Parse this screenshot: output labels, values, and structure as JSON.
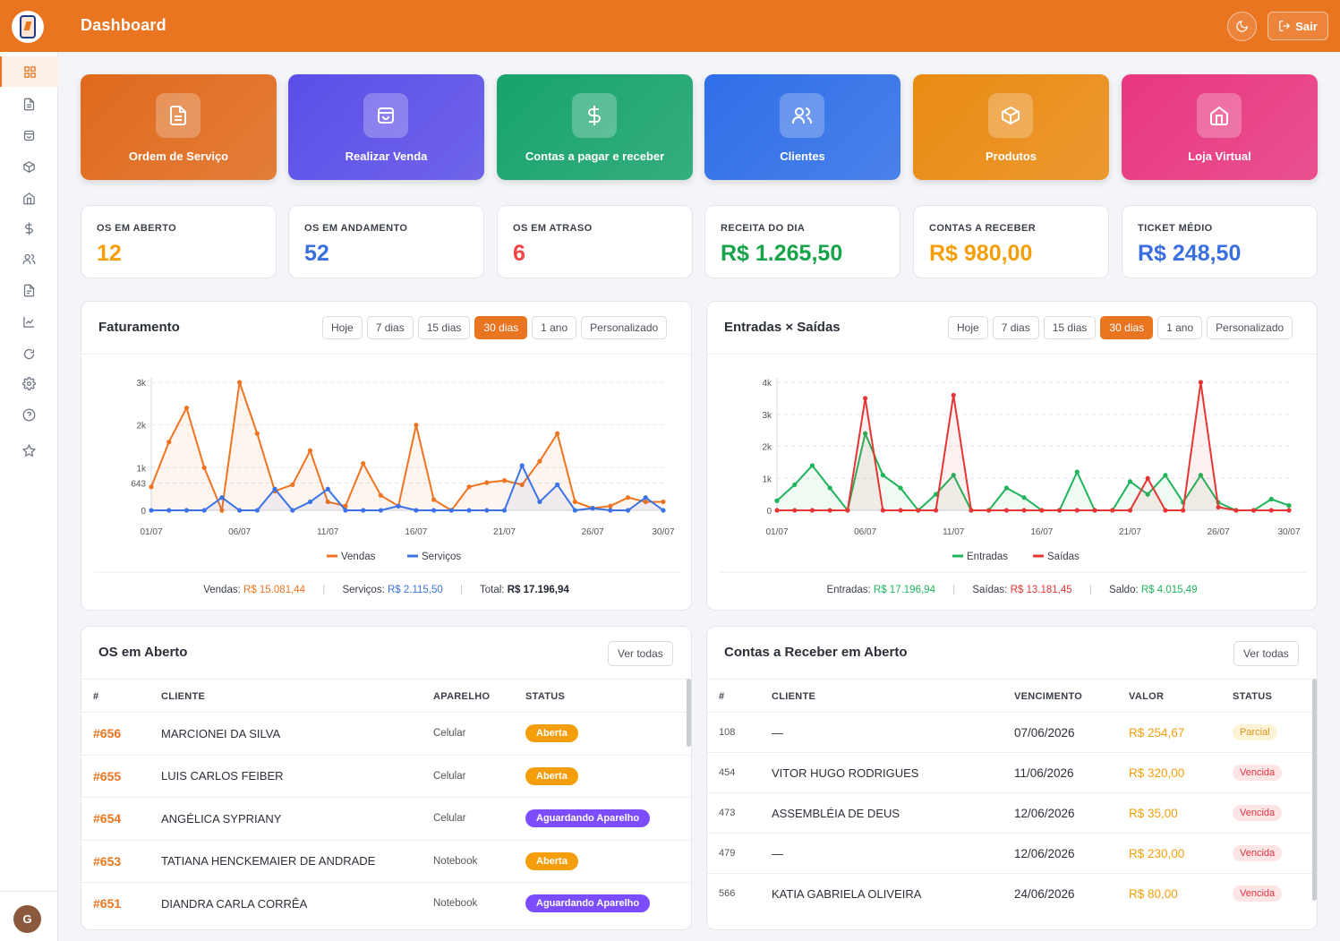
{
  "header": {
    "title": "Dashboard",
    "logout_label": "Sair"
  },
  "sidebar": {
    "avatar_initial": "G"
  },
  "tiles": [
    {
      "label": "Ordem de Serviço",
      "icon": "document-icon",
      "color": "#e06a1c"
    },
    {
      "label": "Realizar Venda",
      "icon": "bag-icon",
      "color": "#5b4ee8"
    },
    {
      "label": "Contas a pagar e receber",
      "icon": "dollar-icon",
      "color": "#17a36b"
    },
    {
      "label": "Clientes",
      "icon": "users-icon",
      "color": "#2f6fe8"
    },
    {
      "label": "Produtos",
      "icon": "box-icon",
      "color": "#ea8a12"
    },
    {
      "label": "Loja Virtual",
      "icon": "store-icon",
      "color": "#e8377f"
    }
  ],
  "stats": [
    {
      "label": "OS EM ABERTO",
      "value": "12",
      "color": "#f59e0b"
    },
    {
      "label": "OS EM ANDAMENTO",
      "value": "52",
      "color": "#3b6fe0"
    },
    {
      "label": "OS EM ATRASO",
      "value": "6",
      "color": "#ef4444"
    },
    {
      "label": "RECEITA DO DIA",
      "value": "R$ 1.265,50",
      "color": "#16a34a"
    },
    {
      "label": "CONTAS A RECEBER",
      "value": "R$ 980,00",
      "color": "#f59e0b"
    },
    {
      "label": "TICKET MÉDIO",
      "value": "R$ 248,50",
      "color": "#3b6fe0"
    }
  ],
  "filters": [
    "Hoje",
    "7 dias",
    "15 dias",
    "30 dias",
    "1 ano",
    "Personalizado"
  ],
  "active_filter": "30 dias",
  "faturamento": {
    "title": "Faturamento",
    "totals": {
      "vendas_label": "Vendas:",
      "vendas_value": "R$ 15.081,44",
      "servicos_label": "Serviços:",
      "servicos_value": "R$ 2.115,50",
      "total_label": "Total:",
      "total_value": "R$ 17.196,94"
    }
  },
  "entradas_saidas": {
    "title": "Entradas × Saídas",
    "totals": {
      "entradas_label": "Entradas:",
      "entradas_value": "R$ 17.196,94",
      "saidas_label": "Saídas:",
      "saidas_value": "R$ 13.181,45",
      "saldo_label": "Saldo:",
      "saldo_value": "R$ 4.015,49"
    }
  },
  "chart_data": [
    {
      "type": "area",
      "x": [
        "01/07",
        "02/07",
        "03/07",
        "04/07",
        "05/07",
        "06/07",
        "07/07",
        "08/07",
        "09/07",
        "10/07",
        "11/07",
        "12/07",
        "13/07",
        "14/07",
        "15/07",
        "16/07",
        "17/07",
        "18/07",
        "19/07",
        "20/07",
        "21/07",
        "22/07",
        "23/07",
        "24/07",
        "25/07",
        "26/07",
        "27/07",
        "28/07",
        "29/07",
        "30/07"
      ],
      "xticks": [
        "01/07",
        "06/07",
        "11/07",
        "16/07",
        "21/07",
        "26/07",
        "30/07"
      ],
      "yticks": [
        {
          "v": 0,
          "l": "0"
        },
        {
          "v": 643,
          "l": "643"
        },
        {
          "v": 1000,
          "l": "1k"
        },
        {
          "v": 2000,
          "l": "2k"
        },
        {
          "v": 3000,
          "l": "3k"
        }
      ],
      "ylim": [
        0,
        3000
      ],
      "series": [
        {
          "name": "Vendas",
          "color": "#f07320",
          "values": [
            550,
            1600,
            2400,
            1000,
            0,
            4000,
            1800,
            450,
            600,
            1400,
            200,
            100,
            1100,
            350,
            100,
            2000,
            250,
            0,
            550,
            650,
            700,
            600,
            1150,
            1800,
            200,
            50,
            100,
            300,
            200,
            200
          ]
        },
        {
          "name": "Serviços",
          "color": "#3b73e6",
          "values": [
            0,
            0,
            0,
            0,
            300,
            0,
            0,
            500,
            0,
            200,
            500,
            0,
            0,
            0,
            100,
            0,
            0,
            0,
            0,
            0,
            0,
            1050,
            200,
            600,
            0,
            50,
            0,
            0,
            300,
            0
          ]
        }
      ]
    },
    {
      "type": "area",
      "x": [
        "01/07",
        "02/07",
        "03/07",
        "04/07",
        "05/07",
        "06/07",
        "07/07",
        "08/07",
        "09/07",
        "10/07",
        "11/07",
        "12/07",
        "13/07",
        "14/07",
        "15/07",
        "16/07",
        "17/07",
        "18/07",
        "19/07",
        "20/07",
        "21/07",
        "22/07",
        "23/07",
        "24/07",
        "25/07",
        "26/07",
        "27/07",
        "28/07",
        "29/07",
        "30/07"
      ],
      "xticks": [
        "01/07",
        "06/07",
        "11/07",
        "16/07",
        "21/07",
        "26/07",
        "30/07"
      ],
      "yticks": [
        {
          "v": 0,
          "l": "0"
        },
        {
          "v": 1000,
          "l": "1k"
        },
        {
          "v": 2000,
          "l": "2k"
        },
        {
          "v": 3000,
          "l": "3k"
        },
        {
          "v": 4000,
          "l": "4k"
        }
      ],
      "ylim": [
        0,
        4000
      ],
      "series": [
        {
          "name": "Entradas",
          "color": "#1fb45c",
          "values": [
            300,
            800,
            1400,
            700,
            0,
            2400,
            1100,
            700,
            0,
            500,
            1100,
            0,
            0,
            700,
            400,
            0,
            0,
            1200,
            0,
            0,
            900,
            500,
            1100,
            250,
            1100,
            250,
            0,
            0,
            350,
            150
          ]
        },
        {
          "name": "Saídas",
          "color": "#e53535",
          "values": [
            0,
            0,
            0,
            0,
            0,
            3500,
            0,
            0,
            0,
            0,
            3600,
            0,
            0,
            0,
            0,
            0,
            0,
            0,
            0,
            0,
            0,
            1000,
            0,
            0,
            4100,
            100,
            0,
            0,
            0,
            0
          ]
        }
      ]
    }
  ],
  "os_table": {
    "title": "OS em Aberto",
    "view_all": "Ver todas",
    "headers": [
      "#",
      "CLIENTE",
      "APARELHO",
      "STATUS"
    ],
    "rows": [
      {
        "id": "#656",
        "cliente": "MARCIONEI DA SILVA",
        "aparelho": "Celular",
        "status": "Aberta",
        "kind": "open"
      },
      {
        "id": "#655",
        "cliente": "LUIS CARLOS FEIBER",
        "aparelho": "Celular",
        "status": "Aberta",
        "kind": "open"
      },
      {
        "id": "#654",
        "cliente": "ANGÉLICA SYPRIANY",
        "aparelho": "Celular",
        "status": "Aguardando Aparelho",
        "kind": "wait"
      },
      {
        "id": "#653",
        "cliente": "TATIANA HENCKEMAIER DE ANDRADE",
        "aparelho": "Notebook",
        "status": "Aberta",
        "kind": "open"
      },
      {
        "id": "#651",
        "cliente": "DIANDRA CARLA CORRÊA",
        "aparelho": "Notebook",
        "status": "Aguardando Aparelho",
        "kind": "wait"
      }
    ]
  },
  "receber_table": {
    "title": "Contas a Receber em Aberto",
    "view_all": "Ver todas",
    "headers": [
      "#",
      "CLIENTE",
      "VENCIMENTO",
      "VALOR",
      "STATUS"
    ],
    "rows": [
      {
        "id": "108",
        "cliente": "—",
        "vencimento": "07/06/2026",
        "valor": "R$ 254,67",
        "status": "Parcial",
        "kind": "partial"
      },
      {
        "id": "454",
        "cliente": "VITOR HUGO RODRIGUES",
        "vencimento": "11/06/2026",
        "valor": "R$ 320,00",
        "status": "Vencida",
        "kind": "late"
      },
      {
        "id": "473",
        "cliente": "ASSEMBLÉIA DE DEUS",
        "vencimento": "12/06/2026",
        "valor": "R$ 35,00",
        "status": "Vencida",
        "kind": "late"
      },
      {
        "id": "479",
        "cliente": "—",
        "vencimento": "12/06/2026",
        "valor": "R$ 230,00",
        "status": "Vencida",
        "kind": "late"
      },
      {
        "id": "566",
        "cliente": "KATIA GABRIELA OLIVEIRA",
        "vencimento": "24/06/2026",
        "valor": "R$ 80,00",
        "status": "Vencida",
        "kind": "late"
      }
    ]
  }
}
